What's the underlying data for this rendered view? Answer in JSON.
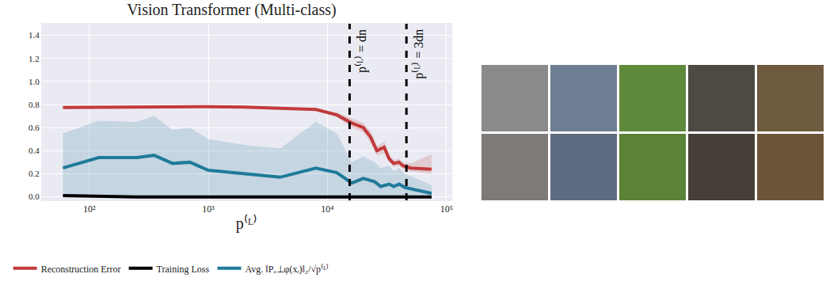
{
  "chart_data": {
    "type": "line",
    "title": "Vision Transformer (Multi-class)",
    "x_label": "p⁽ᴸ⁾",
    "log": "x",
    "grid": true,
    "legend": "bottom",
    "xlim": [
      40,
      110000
    ],
    "xticks": [
      {
        "value": 100,
        "label": "10²"
      },
      {
        "value": 1000,
        "label": "10³"
      },
      {
        "value": 10000,
        "label": "10⁴"
      },
      {
        "value": 100000,
        "label": "10⁵"
      }
    ],
    "ylim": [
      -0.03,
      1.5
    ],
    "yticks": [
      {
        "value": 0,
        "label": "0.0"
      },
      0.2,
      0.4,
      0.6,
      0.8,
      {
        "value": 1,
        "label": "1.0"
      },
      1.2,
      1.4
    ],
    "vlines": [
      {
        "x": 15360,
        "label": "p⁽ᴸ⁾ = dn",
        "line_style": "dash",
        "color": "#000000"
      },
      {
        "x": 46080,
        "label": "p⁽ᴸ⁾ = 3dn",
        "line_style": "dash",
        "color": "#000000"
      }
    ],
    "series": [
      {
        "name": "Reconstruction Error",
        "color": "#c23b3b",
        "line_style": "solid",
        "x": [
          60,
          120,
          250,
          500,
          1000,
          2000,
          4000,
          8000,
          12000,
          16000,
          20000,
          23000,
          26000,
          30000,
          33000,
          36000,
          40000,
          43000,
          50000,
          75000
        ],
        "values": [
          0.775,
          0.778,
          0.78,
          0.782,
          0.781,
          0.778,
          0.77,
          0.757,
          0.71,
          0.64,
          0.6,
          0.52,
          0.4,
          0.43,
          0.33,
          0.29,
          0.3,
          0.27,
          0.25,
          0.24
        ],
        "lower": [
          0.77,
          0.773,
          0.775,
          0.777,
          0.776,
          0.773,
          0.765,
          0.75,
          0.69,
          0.6,
          0.56,
          0.47,
          0.36,
          0.38,
          0.3,
          0.26,
          0.27,
          0.24,
          0.22,
          0.2
        ],
        "upper": [
          0.78,
          0.783,
          0.785,
          0.787,
          0.786,
          0.783,
          0.775,
          0.764,
          0.73,
          0.68,
          0.64,
          0.57,
          0.44,
          0.48,
          0.36,
          0.32,
          0.33,
          0.3,
          0.29,
          0.37
        ]
      },
      {
        "name": "Training Loss",
        "color": "#000000",
        "line_style": "solid",
        "x": [
          60,
          120,
          250,
          500,
          1000,
          2000,
          4000,
          8000,
          12000,
          16000,
          20000,
          23000,
          26000,
          30000,
          33000,
          36000,
          40000,
          43000,
          50000,
          75000
        ],
        "values": [
          0.012,
          0.003,
          0,
          0,
          0,
          0,
          0,
          0,
          0,
          0,
          0,
          0,
          0,
          0,
          0,
          0,
          0,
          0,
          0,
          0
        ]
      },
      {
        "name": "Avg. ‖Pₐ⊥φ(xᵢ)‖₂/√p⁽ᴸ⁾",
        "color": "#1f7a99",
        "line_style": "solid",
        "x": [
          60,
          120,
          250,
          350,
          500,
          700,
          1000,
          2000,
          4000,
          8000,
          12000,
          16000,
          20000,
          25000,
          28000,
          33000,
          36000,
          40000,
          45000,
          75000
        ],
        "values": [
          0.25,
          0.34,
          0.34,
          0.36,
          0.29,
          0.3,
          0.23,
          0.2,
          0.17,
          0.25,
          0.21,
          0.12,
          0.16,
          0.13,
          0.09,
          0.11,
          0.09,
          0.11,
          0.08,
          0.03
        ],
        "lower": [
          0,
          0,
          0,
          0,
          0,
          0,
          0,
          0,
          0,
          0,
          0,
          0,
          0,
          0,
          0,
          0,
          0,
          0,
          0,
          0
        ],
        "upper": [
          0.55,
          0.66,
          0.65,
          0.7,
          0.58,
          0.6,
          0.5,
          0.45,
          0.42,
          0.65,
          0.55,
          0.3,
          0.35,
          0.3,
          0.25,
          0.27,
          0.22,
          0.25,
          0.2,
          0.1
        ]
      }
    ]
  }
}
